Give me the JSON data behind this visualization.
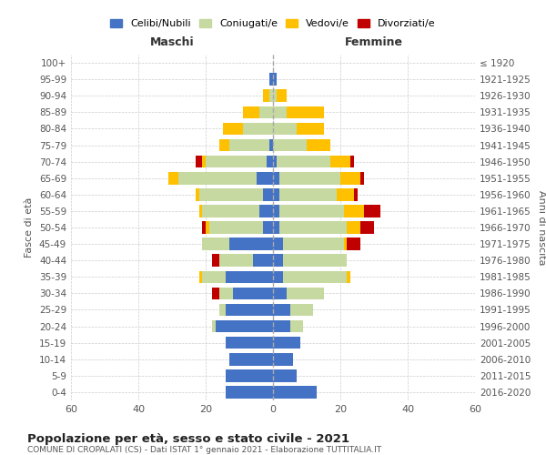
{
  "age_groups": [
    "100+",
    "95-99",
    "90-94",
    "85-89",
    "80-84",
    "75-79",
    "70-74",
    "65-69",
    "60-64",
    "55-59",
    "50-54",
    "45-49",
    "40-44",
    "35-39",
    "30-34",
    "25-29",
    "20-24",
    "15-19",
    "10-14",
    "5-9",
    "0-4"
  ],
  "birth_years": [
    "≤ 1920",
    "1921-1925",
    "1926-1930",
    "1931-1935",
    "1936-1940",
    "1941-1945",
    "1946-1950",
    "1951-1955",
    "1956-1960",
    "1961-1965",
    "1966-1970",
    "1971-1975",
    "1976-1980",
    "1981-1985",
    "1986-1990",
    "1991-1995",
    "1996-2000",
    "2001-2005",
    "2006-2010",
    "2011-2015",
    "2016-2020"
  ],
  "colors": {
    "celibe": "#4472c4",
    "coniugato": "#c5d9a0",
    "vedovo": "#ffc000",
    "divorziato": "#c00000"
  },
  "maschi": {
    "celibe": [
      0,
      1,
      0,
      0,
      0,
      1,
      2,
      5,
      3,
      4,
      3,
      13,
      6,
      14,
      12,
      14,
      17,
      14,
      13,
      14,
      14
    ],
    "coniugato": [
      0,
      0,
      1,
      4,
      9,
      12,
      18,
      23,
      19,
      17,
      16,
      8,
      10,
      7,
      4,
      2,
      1,
      0,
      0,
      0,
      0
    ],
    "vedovo": [
      0,
      0,
      2,
      5,
      6,
      3,
      1,
      3,
      1,
      1,
      1,
      0,
      0,
      1,
      0,
      0,
      0,
      0,
      0,
      0,
      0
    ],
    "divorziato": [
      0,
      0,
      0,
      0,
      0,
      0,
      2,
      0,
      0,
      0,
      1,
      0,
      2,
      0,
      2,
      0,
      0,
      0,
      0,
      0,
      0
    ]
  },
  "femmine": {
    "nubile": [
      0,
      1,
      0,
      0,
      0,
      0,
      1,
      2,
      2,
      2,
      2,
      3,
      3,
      3,
      4,
      5,
      5,
      8,
      6,
      7,
      13
    ],
    "coniugata": [
      0,
      0,
      1,
      4,
      7,
      10,
      16,
      18,
      17,
      19,
      20,
      18,
      19,
      19,
      11,
      7,
      4,
      0,
      0,
      0,
      0
    ],
    "vedova": [
      0,
      0,
      3,
      11,
      8,
      7,
      6,
      6,
      5,
      6,
      4,
      1,
      0,
      1,
      0,
      0,
      0,
      0,
      0,
      0,
      0
    ],
    "divorziata": [
      0,
      0,
      0,
      0,
      0,
      0,
      1,
      1,
      1,
      5,
      4,
      4,
      0,
      0,
      0,
      0,
      0,
      0,
      0,
      0,
      0
    ]
  },
  "title": "Popolazione per età, sesso e stato civile - 2021",
  "subtitle": "COMUNE DI CROPALATI (CS) - Dati ISTAT 1° gennaio 2021 - Elaborazione TUTTITALIA.IT",
  "xlabel_left": "Maschi",
  "xlabel_right": "Femmine",
  "ylabel_left": "Fasce di età",
  "ylabel_right": "Anni di nascita",
  "xlim": 60,
  "legend_labels": [
    "Celibi/Nubili",
    "Coniugati/e",
    "Vedovi/e",
    "Divorziati/e"
  ],
  "background_color": "#ffffff",
  "grid_color": "#cccccc"
}
